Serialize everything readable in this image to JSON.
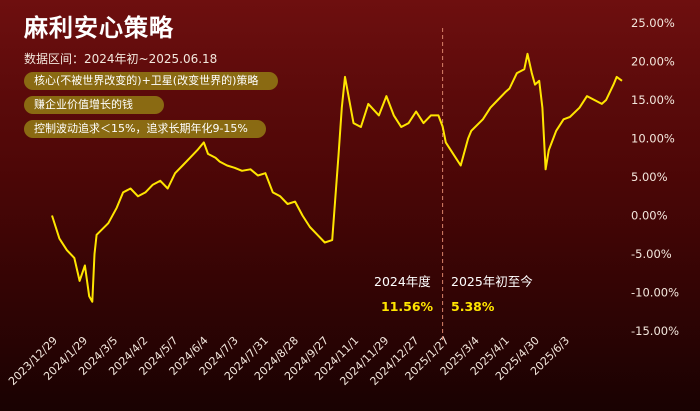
{
  "header": {
    "title": "麻利安心策略",
    "subtitle": "数据区间：2024年初~2025.06.18",
    "pills": [
      "核心(不被世界改变的)+卫星(改变世界的)策略",
      "赚企业价值增长的钱",
      "控制波动追求＜15%，追求长期年化9-15%"
    ]
  },
  "annotations": {
    "y2024_label": "2024年度",
    "y2024_value": "11.56%",
    "y2025_label": "2025年初至今",
    "y2025_value": "5.38%"
  },
  "colors": {
    "line": "#ffe500",
    "divider": "#d9826a",
    "pill": "#8a6a12"
  },
  "chart_data": {
    "type": "line",
    "title": "",
    "ylim": [
      -15,
      25
    ],
    "yticks": [
      "25.00%",
      "20.00%",
      "15.00%",
      "10.00%",
      "5.00%",
      "0.00%",
      "-5.00%",
      "-10.00%",
      "-15.00%"
    ],
    "ytick_values": [
      25,
      20,
      15,
      10,
      5,
      0,
      -5,
      -10,
      -15
    ],
    "xlim": [
      "2023-12-29",
      "2025-06-18"
    ],
    "xticks": [
      "2023/12/29",
      "2024/1/29",
      "2024/3/5",
      "2024/4/2",
      "2024/5/7",
      "2024/6/4",
      "2024/7/3",
      "2024/7/31",
      "2024/8/28",
      "2024/9/27",
      "2024/11/1",
      "2024/11/29",
      "2024/12/27",
      "2025/1/27",
      "2025/3/4",
      "2025/4/1",
      "2025/4/30",
      "2025/6/3"
    ],
    "divider_date": "2024-12-31",
    "series": [
      {
        "points": [
          [
            "2023-12-29",
            0.0
          ],
          [
            "2024-01-05",
            -3.0
          ],
          [
            "2024-01-12",
            -4.5
          ],
          [
            "2024-01-19",
            -5.5
          ],
          [
            "2024-01-24",
            -8.5
          ],
          [
            "2024-01-29",
            -6.5
          ],
          [
            "2024-02-02",
            -10.5
          ],
          [
            "2024-02-05",
            -11.2
          ],
          [
            "2024-02-07",
            -5.0
          ],
          [
            "2024-02-09",
            -2.5
          ],
          [
            "2024-02-20",
            -1.0
          ],
          [
            "2024-02-28",
            1.0
          ],
          [
            "2024-03-05",
            3.0
          ],
          [
            "2024-03-12",
            3.5
          ],
          [
            "2024-03-19",
            2.5
          ],
          [
            "2024-03-26",
            3.0
          ],
          [
            "2024-04-02",
            4.0
          ],
          [
            "2024-04-09",
            4.5
          ],
          [
            "2024-04-16",
            3.5
          ],
          [
            "2024-04-23",
            5.5
          ],
          [
            "2024-04-30",
            6.5
          ],
          [
            "2024-05-07",
            7.5
          ],
          [
            "2024-05-14",
            8.5
          ],
          [
            "2024-05-20",
            9.5
          ],
          [
            "2024-05-24",
            8.0
          ],
          [
            "2024-05-31",
            7.5
          ],
          [
            "2024-06-04",
            7.0
          ],
          [
            "2024-06-11",
            6.5
          ],
          [
            "2024-06-18",
            6.2
          ],
          [
            "2024-06-25",
            5.8
          ],
          [
            "2024-07-03",
            6.0
          ],
          [
            "2024-07-10",
            5.2
          ],
          [
            "2024-07-17",
            5.5
          ],
          [
            "2024-07-24",
            3.0
          ],
          [
            "2024-07-31",
            2.5
          ],
          [
            "2024-08-07",
            1.5
          ],
          [
            "2024-08-14",
            1.8
          ],
          [
            "2024-08-21",
            0.0
          ],
          [
            "2024-08-28",
            -1.5
          ],
          [
            "2024-09-04",
            -2.5
          ],
          [
            "2024-09-11",
            -3.5
          ],
          [
            "2024-09-18",
            -3.2
          ],
          [
            "2024-09-20",
            0.5
          ],
          [
            "2024-09-24",
            8.0
          ],
          [
            "2024-09-27",
            14.0
          ],
          [
            "2024-09-30",
            18.0
          ],
          [
            "2024-10-08",
            12.0
          ],
          [
            "2024-10-15",
            11.5
          ],
          [
            "2024-10-22",
            14.5
          ],
          [
            "2024-11-01",
            13.0
          ],
          [
            "2024-11-08",
            15.5
          ],
          [
            "2024-11-15",
            13.0
          ],
          [
            "2024-11-22",
            11.5
          ],
          [
            "2024-11-29",
            12.0
          ],
          [
            "2024-12-06",
            13.5
          ],
          [
            "2024-12-13",
            12.0
          ],
          [
            "2024-12-20",
            13.0
          ],
          [
            "2024-12-27",
            13.0
          ],
          [
            "2024-12-31",
            11.56
          ],
          [
            "2025-01-03",
            9.5
          ],
          [
            "2025-01-10",
            8.0
          ],
          [
            "2025-01-17",
            6.5
          ],
          [
            "2025-01-24",
            10.0
          ],
          [
            "2025-01-27",
            11.0
          ],
          [
            "2025-02-07",
            12.5
          ],
          [
            "2025-02-14",
            14.0
          ],
          [
            "2025-02-21",
            15.0
          ],
          [
            "2025-02-28",
            16.0
          ],
          [
            "2025-03-04",
            16.5
          ],
          [
            "2025-03-11",
            18.5
          ],
          [
            "2025-03-18",
            19.0
          ],
          [
            "2025-03-21",
            21.0
          ],
          [
            "2025-03-25",
            18.5
          ],
          [
            "2025-03-28",
            17.0
          ],
          [
            "2025-04-01",
            17.5
          ],
          [
            "2025-04-04",
            14.0
          ],
          [
            "2025-04-07",
            6.0
          ],
          [
            "2025-04-10",
            8.5
          ],
          [
            "2025-04-17",
            11.0
          ],
          [
            "2025-04-24",
            12.5
          ],
          [
            "2025-04-30",
            12.8
          ],
          [
            "2025-05-09",
            14.0
          ],
          [
            "2025-05-16",
            15.5
          ],
          [
            "2025-05-23",
            15.0
          ],
          [
            "2025-05-30",
            14.5
          ],
          [
            "2025-06-03",
            15.0
          ],
          [
            "2025-06-10",
            17.0
          ],
          [
            "2025-06-13",
            18.0
          ],
          [
            "2025-06-18",
            17.5
          ]
        ]
      }
    ],
    "grid": false,
    "legend": "none"
  }
}
